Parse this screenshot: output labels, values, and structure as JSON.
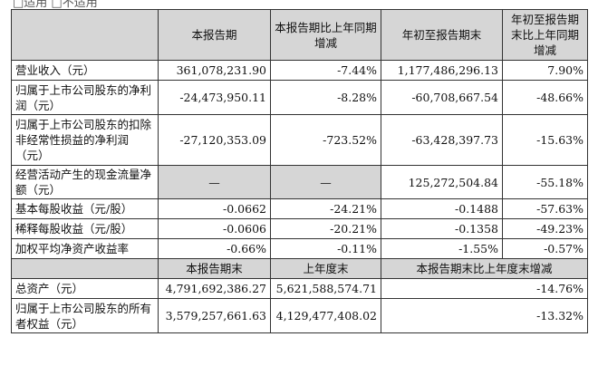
{
  "top_note": "□适用 □不适用",
  "header": {
    "item": "",
    "current": "本报告期",
    "current_change": "本报告期比上年同期增减",
    "ytd": "年初至报告期末",
    "ytd_change": "年初至报告期末比上年同期增减"
  },
  "rows": [
    {
      "label": "营业收入（元）",
      "current": "361,078,231.90",
      "current_change": "-7.44%",
      "ytd": "1,177,486,296.13",
      "ytd_change": "7.90%"
    },
    {
      "label": "归属于上市公司股东的净利润（元）",
      "current": "-24,473,950.11",
      "current_change": "-8.28%",
      "ytd": "-60,708,667.54",
      "ytd_change": "-48.66%"
    },
    {
      "label": "归属于上市公司股东的扣除非经常性损益的净利润（元）",
      "current": "-27,120,353.09",
      "current_change": "-723.52%",
      "ytd": "-63,428,397.73",
      "ytd_change": "-15.63%"
    },
    {
      "label": "经营活动产生的现金流量净额（元）",
      "current": "—",
      "current_change": "—",
      "ytd": "125,272,504.84",
      "ytd_change": "-55.18%"
    },
    {
      "label": "基本每股收益（元/股）",
      "current": "-0.0662",
      "current_change": "-24.21%",
      "ytd": "-0.1488",
      "ytd_change": "-57.63%"
    },
    {
      "label": "稀释每股收益（元/股）",
      "current": "-0.0606",
      "current_change": "-20.21%",
      "ytd": "-0.1358",
      "ytd_change": "-49.23%"
    },
    {
      "label": "加权平均净资产收益率",
      "current": "-0.66%",
      "current_change": "-0.11%",
      "ytd": "-1.55%",
      "ytd_change": "-0.57%"
    }
  ],
  "header2": {
    "item": "",
    "period_end": "本报告期末",
    "last_year_end": "上年度末",
    "change": "本报告期末比上年度末增减"
  },
  "rows2": [
    {
      "label": "总资产（元）",
      "period_end": "4,791,692,386.27",
      "last_year_end": "5,621,588,574.71",
      "change": "-14.76%"
    },
    {
      "label": "归属于上市公司股东的所有者权益（元）",
      "period_end": "3,579,257,661.63",
      "last_year_end": "4,129,477,408.02",
      "change": "-13.32%"
    }
  ]
}
